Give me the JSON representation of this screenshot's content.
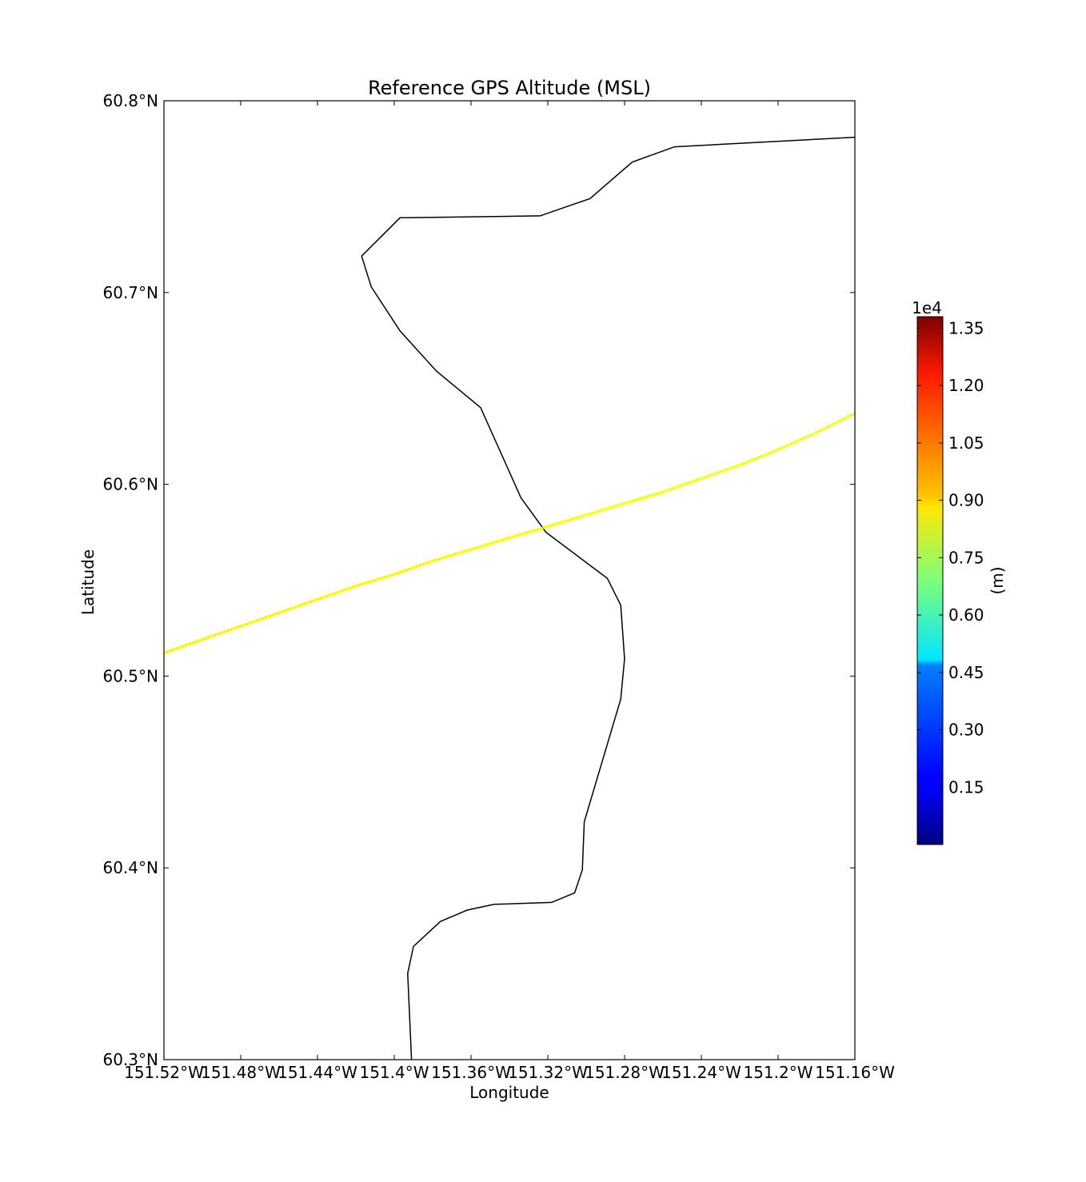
{
  "chart_data": {
    "type": "scatter",
    "title": "Reference GPS Altitude (MSL)",
    "xlabel": "Longitude",
    "ylabel": "Latitude",
    "xlim": [
      -151.52,
      -151.16
    ],
    "ylim": [
      60.3,
      60.8
    ],
    "x_ticks": [
      {
        "value": -151.52,
        "label": "151.52°W"
      },
      {
        "value": -151.48,
        "label": "151.48°W"
      },
      {
        "value": -151.44,
        "label": "151.44°W"
      },
      {
        "value": -151.4,
        "label": "151.4°W"
      },
      {
        "value": -151.36,
        "label": "151.36°W"
      },
      {
        "value": -151.32,
        "label": "151.32°W"
      },
      {
        "value": -151.28,
        "label": "151.28°W"
      },
      {
        "value": -151.24,
        "label": "151.24°W"
      },
      {
        "value": -151.2,
        "label": "151.2°W"
      },
      {
        "value": -151.16,
        "label": "151.16°W"
      }
    ],
    "y_ticks": [
      {
        "value": 60.3,
        "label": "60.3°N"
      },
      {
        "value": 60.4,
        "label": "60.4°N"
      },
      {
        "value": 60.5,
        "label": "60.5°N"
      },
      {
        "value": 60.6,
        "label": "60.6°N"
      },
      {
        "value": 60.7,
        "label": "60.7°N"
      },
      {
        "value": 60.8,
        "label": "60.8°N"
      }
    ],
    "coastline": [
      [
        -151.391,
        60.3
      ],
      [
        -151.393,
        60.345
      ],
      [
        -151.39,
        60.359
      ],
      [
        -151.376,
        60.372
      ],
      [
        -151.362,
        60.378
      ],
      [
        -151.348,
        60.381
      ],
      [
        -151.318,
        60.382
      ],
      [
        -151.306,
        60.387
      ],
      [
        -151.302,
        60.399
      ],
      [
        -151.301,
        60.424
      ],
      [
        -151.282,
        60.488
      ],
      [
        -151.28,
        60.509
      ],
      [
        -151.282,
        60.537
      ],
      [
        -151.289,
        60.551
      ],
      [
        -151.321,
        60.575
      ],
      [
        -151.334,
        60.593
      ],
      [
        -151.355,
        60.64
      ],
      [
        -151.378,
        60.659
      ],
      [
        -151.397,
        60.68
      ],
      [
        -151.412,
        60.703
      ],
      [
        -151.417,
        60.719
      ],
      [
        -151.397,
        60.739
      ],
      [
        -151.324,
        60.74
      ],
      [
        -151.298,
        60.749
      ],
      [
        -151.276,
        60.768
      ],
      [
        -151.254,
        60.776
      ],
      [
        -151.16,
        60.781
      ]
    ],
    "series": [
      {
        "x": [
          -151.52,
          -151.5,
          -151.48,
          -151.46,
          -151.44,
          -151.42,
          -151.4,
          -151.38,
          -151.36,
          -151.34,
          -151.32,
          -151.3,
          -151.28,
          -151.26,
          -151.24,
          -151.22,
          -151.2,
          -151.18,
          -151.16
        ],
        "y": [
          60.512,
          60.519,
          60.526,
          60.533,
          60.54,
          60.547,
          60.553,
          60.56,
          60.566,
          60.572,
          60.578,
          60.584,
          60.59,
          60.596,
          60.603,
          60.61,
          60.618,
          60.627,
          60.637
        ],
        "values": [
          8800,
          8790,
          8780,
          8770,
          8760,
          8750,
          8740,
          8720,
          8700,
          8680,
          8660,
          8630,
          8600,
          8570,
          8540,
          8510,
          8480,
          8450,
          8420
        ],
        "color_hint": "#d8ff1e"
      }
    ],
    "colorbar": {
      "colormap": "jet",
      "min": 0,
      "max": 13800,
      "ticks": [
        {
          "value": 1500,
          "label": "0.15"
        },
        {
          "value": 3000,
          "label": "0.30"
        },
        {
          "value": 4500,
          "label": "0.45"
        },
        {
          "value": 6000,
          "label": "0.60"
        },
        {
          "value": 7500,
          "label": "0.75"
        },
        {
          "value": 9000,
          "label": "0.90"
        },
        {
          "value": 10500,
          "label": "1.05"
        },
        {
          "value": 12000,
          "label": "1.20"
        },
        {
          "value": 13500,
          "label": "1.35"
        }
      ],
      "offset_label": "1e4",
      "label": "(m)"
    },
    "grid": false,
    "colors": {
      "coastline": "#000000",
      "frame": "#000000",
      "background": "#ffffff"
    }
  }
}
